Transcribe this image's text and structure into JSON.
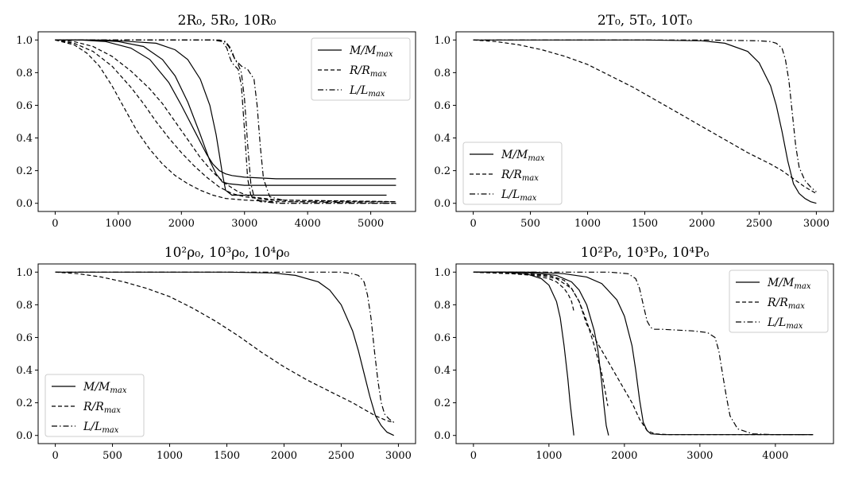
{
  "chart_data": [
    {
      "type": "line",
      "title": "2R₀, 5R₀, 10R₀",
      "xlabel": "",
      "ylabel": "",
      "xlim": [
        -270,
        5710
      ],
      "ylim": [
        -0.05,
        1.05
      ],
      "xticks": [
        0,
        1000,
        2000,
        3000,
        4000,
        5000
      ],
      "yticks": [
        0.0,
        0.2,
        0.4,
        0.6,
        0.8,
        1.0
      ],
      "legend": {
        "position": "top-right",
        "entries": [
          {
            "label": "M/M_max",
            "style": "solid"
          },
          {
            "label": "R/R_max",
            "style": "dashed"
          },
          {
            "label": "L/L_max",
            "style": "dashdot"
          }
        ]
      },
      "series": [
        {
          "style": "solid",
          "x": [
            0,
            400,
            800,
            1200,
            1500,
            1800,
            2000,
            2200,
            2400,
            2500,
            2600,
            2700,
            2800,
            3000,
            3500,
            4500,
            5400
          ],
          "y": [
            1.0,
            1.0,
            0.99,
            0.95,
            0.88,
            0.74,
            0.6,
            0.45,
            0.3,
            0.24,
            0.2,
            0.18,
            0.17,
            0.16,
            0.15,
            0.15,
            0.15
          ]
        },
        {
          "style": "solid",
          "x": [
            0,
            600,
            1000,
            1400,
            1700,
            1900,
            2100,
            2300,
            2450,
            2550,
            2650,
            2750,
            3000,
            4000,
            5400
          ],
          "y": [
            1.0,
            1.0,
            0.99,
            0.96,
            0.88,
            0.78,
            0.62,
            0.42,
            0.26,
            0.18,
            0.13,
            0.12,
            0.11,
            0.11,
            0.11
          ]
        },
        {
          "style": "solid",
          "x": [
            0,
            800,
            1200,
            1600,
            1900,
            2100,
            2300,
            2450,
            2550,
            2600,
            2650,
            2700,
            2800,
            3500,
            5250
          ],
          "y": [
            1.0,
            1.0,
            0.99,
            0.98,
            0.94,
            0.88,
            0.76,
            0.6,
            0.42,
            0.3,
            0.18,
            0.08,
            0.05,
            0.05,
            0.05
          ]
        },
        {
          "style": "dashed",
          "x": [
            0,
            300,
            500,
            700,
            900,
            1100,
            1300,
            1500,
            1700,
            1900,
            2100,
            2300,
            2500,
            2700,
            3000,
            3500,
            5400
          ],
          "y": [
            1.0,
            0.97,
            0.92,
            0.84,
            0.72,
            0.58,
            0.44,
            0.33,
            0.24,
            0.17,
            0.12,
            0.08,
            0.05,
            0.03,
            0.02,
            0.01,
            0.01
          ]
        },
        {
          "style": "dashed",
          "x": [
            0,
            300,
            600,
            900,
            1200,
            1400,
            1600,
            1800,
            2000,
            2200,
            2400,
            2600,
            2800,
            3000,
            3400,
            5400
          ],
          "y": [
            1.0,
            0.98,
            0.93,
            0.84,
            0.71,
            0.61,
            0.5,
            0.4,
            0.31,
            0.23,
            0.16,
            0.1,
            0.06,
            0.04,
            0.02,
            0.01
          ]
        },
        {
          "style": "dashed",
          "x": [
            0,
            300,
            600,
            900,
            1200,
            1500,
            1700,
            1900,
            2100,
            2300,
            2500,
            2700,
            2900,
            3100,
            3500,
            5400
          ],
          "y": [
            1.0,
            0.99,
            0.96,
            0.9,
            0.81,
            0.7,
            0.61,
            0.5,
            0.39,
            0.28,
            0.19,
            0.12,
            0.07,
            0.04,
            0.02,
            0.01
          ]
        },
        {
          "style": "dashdot",
          "x": [
            0,
            2500,
            2650,
            2720,
            2760,
            2800,
            2850,
            2900,
            2950,
            3000,
            3050,
            3100,
            3200,
            3500,
            5400
          ],
          "y": [
            1.0,
            1.0,
            0.99,
            0.95,
            0.9,
            0.86,
            0.84,
            0.82,
            0.72,
            0.45,
            0.15,
            0.05,
            0.02,
            0.0,
            0.0
          ]
        },
        {
          "style": "dashdot",
          "x": [
            0,
            2550,
            2680,
            2750,
            2800,
            2850,
            2900,
            2950,
            3000,
            3050,
            3100,
            3150,
            3250,
            3600,
            5400
          ],
          "y": [
            1.0,
            1.0,
            0.99,
            0.96,
            0.92,
            0.88,
            0.85,
            0.8,
            0.64,
            0.36,
            0.12,
            0.04,
            0.01,
            0.0,
            0.0
          ]
        },
        {
          "style": "dashdot",
          "x": [
            0,
            2600,
            2700,
            2780,
            2850,
            2950,
            3050,
            3150,
            3200,
            3250,
            3300,
            3400,
            3700,
            5400
          ],
          "y": [
            1.0,
            1.0,
            0.99,
            0.95,
            0.88,
            0.84,
            0.82,
            0.76,
            0.6,
            0.35,
            0.15,
            0.04,
            0.01,
            0.0
          ]
        }
      ]
    },
    {
      "type": "line",
      "title": "2T₀, 5T₀, 10T₀",
      "xlabel": "",
      "ylabel": "",
      "xlim": [
        -150,
        3150
      ],
      "ylim": [
        -0.05,
        1.05
      ],
      "xticks": [
        0,
        500,
        1000,
        1500,
        2000,
        2500,
        3000
      ],
      "yticks": [
        0.0,
        0.2,
        0.4,
        0.6,
        0.8,
        1.0
      ],
      "legend": {
        "position": "lower-left",
        "entries": [
          {
            "label": "M/M_max",
            "style": "solid"
          },
          {
            "label": "R/R_max",
            "style": "dashed"
          },
          {
            "label": "L/L_max",
            "style": "dashdot"
          }
        ]
      },
      "series": [
        {
          "style": "solid",
          "x": [
            0,
            500,
            1000,
            1500,
            2000,
            2200,
            2400,
            2500,
            2600,
            2650,
            2700,
            2750,
            2800,
            2850,
            2900,
            2950,
            3000
          ],
          "y": [
            1.0,
            1.0,
            1.0,
            1.0,
            0.995,
            0.98,
            0.93,
            0.86,
            0.72,
            0.6,
            0.44,
            0.26,
            0.12,
            0.06,
            0.03,
            0.01,
            0.0
          ]
        },
        {
          "style": "dashed",
          "x": [
            0,
            200,
            400,
            600,
            800,
            1000,
            1200,
            1400,
            1600,
            1800,
            2000,
            2200,
            2400,
            2600,
            2700,
            2800,
            2900,
            3000
          ],
          "y": [
            1.0,
            0.99,
            0.97,
            0.94,
            0.9,
            0.85,
            0.78,
            0.71,
            0.63,
            0.55,
            0.47,
            0.39,
            0.31,
            0.24,
            0.2,
            0.15,
            0.1,
            0.06
          ]
        },
        {
          "style": "dashdot",
          "x": [
            0,
            1000,
            2000,
            2500,
            2600,
            2650,
            2700,
            2730,
            2760,
            2790,
            2820,
            2850,
            2900,
            2950,
            3000
          ],
          "y": [
            1.0,
            1.0,
            1.0,
            0.995,
            0.99,
            0.98,
            0.95,
            0.88,
            0.75,
            0.55,
            0.35,
            0.22,
            0.14,
            0.1,
            0.07
          ]
        }
      ]
    },
    {
      "type": "line",
      "title": "10²ρ₀, 10³ρ₀, 10⁴ρ₀",
      "xlabel": "",
      "ylabel": "",
      "xlim": [
        -150,
        3150
      ],
      "ylim": [
        -0.05,
        1.05
      ],
      "xticks": [
        0,
        500,
        1000,
        1500,
        2000,
        2500,
        3000
      ],
      "yticks": [
        0.0,
        0.2,
        0.4,
        0.6,
        0.8,
        1.0
      ],
      "legend": {
        "position": "lower-left",
        "entries": [
          {
            "label": "M/M_max",
            "style": "solid"
          },
          {
            "label": "R/R_max",
            "style": "dashed"
          },
          {
            "label": "L/L_max",
            "style": "dashdot"
          }
        ]
      },
      "series": [
        {
          "style": "solid",
          "x": [
            0,
            500,
            1000,
            1500,
            1900,
            2100,
            2300,
            2400,
            2500,
            2600,
            2650,
            2700,
            2750,
            2800,
            2850,
            2900,
            2960
          ],
          "y": [
            1.0,
            1.0,
            1.0,
            1.0,
            0.995,
            0.98,
            0.94,
            0.89,
            0.8,
            0.64,
            0.52,
            0.38,
            0.24,
            0.12,
            0.06,
            0.02,
            0.0
          ]
        },
        {
          "style": "dashed",
          "x": [
            0,
            200,
            400,
            600,
            800,
            1000,
            1200,
            1400,
            1600,
            1800,
            2000,
            2200,
            2400,
            2600,
            2700,
            2800,
            2900,
            2960
          ],
          "y": [
            1.0,
            0.99,
            0.97,
            0.94,
            0.9,
            0.85,
            0.78,
            0.7,
            0.61,
            0.51,
            0.42,
            0.34,
            0.27,
            0.2,
            0.16,
            0.12,
            0.09,
            0.08
          ]
        },
        {
          "style": "dashdot",
          "x": [
            0,
            1000,
            2000,
            2500,
            2600,
            2650,
            2700,
            2730,
            2760,
            2790,
            2820,
            2850,
            2880,
            2920,
            2960
          ],
          "y": [
            1.0,
            1.0,
            1.0,
            1.0,
            0.99,
            0.98,
            0.94,
            0.86,
            0.72,
            0.52,
            0.34,
            0.2,
            0.13,
            0.1,
            0.08
          ]
        }
      ]
    },
    {
      "type": "line",
      "title": "10²P₀, 10³P₀, 10⁴P₀",
      "xlabel": "",
      "ylabel": "",
      "xlim": [
        -230,
        4770
      ],
      "ylim": [
        -0.05,
        1.05
      ],
      "xticks": [
        0,
        1000,
        2000,
        3000,
        4000
      ],
      "yticks": [
        0.0,
        0.2,
        0.4,
        0.6,
        0.8,
        1.0
      ],
      "legend": {
        "position": "top-right",
        "entries": [
          {
            "label": "M/M_max",
            "style": "solid"
          },
          {
            "label": "R/R_max",
            "style": "dashed"
          },
          {
            "label": "L/L_max",
            "style": "dashdot"
          }
        ]
      },
      "series": [
        {
          "style": "solid",
          "x": [
            0,
            400,
            700,
            900,
            1000,
            1100,
            1150,
            1200,
            1250,
            1280,
            1300,
            1320,
            1330
          ],
          "y": [
            1.0,
            1.0,
            0.99,
            0.96,
            0.92,
            0.82,
            0.72,
            0.55,
            0.35,
            0.2,
            0.12,
            0.04,
            0.0
          ]
        },
        {
          "style": "solid",
          "x": [
            0,
            600,
            900,
            1100,
            1300,
            1400,
            1500,
            1600,
            1650,
            1700,
            1730,
            1760,
            1790
          ],
          "y": [
            1.0,
            1.0,
            0.99,
            0.98,
            0.94,
            0.89,
            0.8,
            0.64,
            0.52,
            0.32,
            0.18,
            0.06,
            0.0
          ]
        },
        {
          "style": "solid",
          "x": [
            0,
            800,
            1200,
            1500,
            1700,
            1900,
            2000,
            2100,
            2150,
            2200,
            2250,
            2300,
            2350,
            2500,
            3000,
            4500
          ],
          "y": [
            1.0,
            1.0,
            0.99,
            0.97,
            0.93,
            0.83,
            0.73,
            0.55,
            0.4,
            0.22,
            0.08,
            0.03,
            0.01,
            0.005,
            0.005,
            0.005
          ]
        },
        {
          "style": "dashed",
          "x": [
            0,
            500,
            800,
            1000,
            1100,
            1200,
            1260,
            1300,
            1320,
            1330
          ],
          "y": [
            1.0,
            0.99,
            0.98,
            0.96,
            0.94,
            0.9,
            0.86,
            0.82,
            0.78,
            0.76
          ]
        },
        {
          "style": "dashed",
          "x": [
            0,
            600,
            900,
            1100,
            1300,
            1400,
            1500,
            1600,
            1700,
            1750,
            1780
          ],
          "y": [
            1.0,
            0.99,
            0.98,
            0.96,
            0.9,
            0.82,
            0.7,
            0.55,
            0.38,
            0.26,
            0.18
          ]
        },
        {
          "style": "dashed",
          "x": [
            0,
            700,
            1000,
            1200,
            1300,
            1400,
            1500,
            1600,
            1700,
            1800,
            1900,
            2000,
            2100,
            2200,
            2300,
            2400,
            2600,
            3000,
            4500
          ],
          "y": [
            1.0,
            0.99,
            0.98,
            0.95,
            0.9,
            0.82,
            0.68,
            0.6,
            0.52,
            0.44,
            0.36,
            0.28,
            0.2,
            0.1,
            0.03,
            0.01,
            0.005,
            0.005,
            0.005
          ]
        },
        {
          "style": "dashdot",
          "x": [
            0,
            1800,
            2050,
            2150,
            2200,
            2250,
            2300,
            2350,
            2400,
            2500,
            2700,
            2900,
            3100,
            3200,
            3250,
            3300,
            3350,
            3400,
            3500,
            3700,
            4000,
            4500
          ],
          "y": [
            1.0,
            1.0,
            0.99,
            0.96,
            0.9,
            0.8,
            0.7,
            0.66,
            0.65,
            0.65,
            0.645,
            0.64,
            0.63,
            0.6,
            0.52,
            0.38,
            0.24,
            0.12,
            0.04,
            0.01,
            0.005,
            0.005
          ]
        }
      ]
    }
  ]
}
